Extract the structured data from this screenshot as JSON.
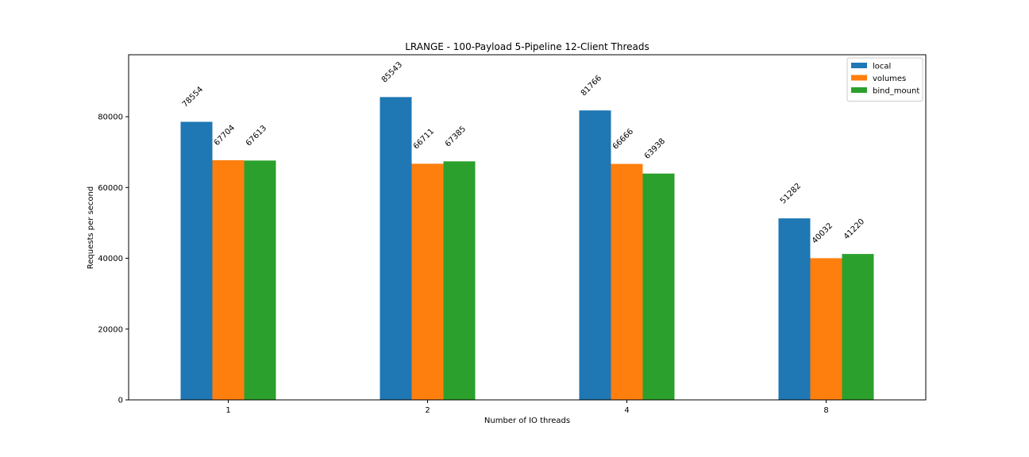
{
  "chart_data": {
    "type": "bar",
    "title": "LRANGE - 100-Payload 5-Pipeline 12-Client Threads",
    "xlabel": "Number of IO threads",
    "ylabel": "Requests per second",
    "categories": [
      "1",
      "2",
      "4",
      "8"
    ],
    "series": [
      {
        "name": "local",
        "color": "#1f77b4",
        "values": [
          78554,
          85543,
          81766,
          51282
        ]
      },
      {
        "name": "volumes",
        "color": "#ff7f0e",
        "values": [
          67704,
          66711,
          66666,
          40032
        ]
      },
      {
        "name": "bind_mount",
        "color": "#2ca02c",
        "values": [
          67613,
          67385,
          63938,
          41220
        ]
      }
    ],
    "yticks": [
      0,
      20000,
      40000,
      60000,
      80000
    ],
    "ylim": [
      0,
      97500
    ],
    "grid": false,
    "legend": "top-right"
  }
}
